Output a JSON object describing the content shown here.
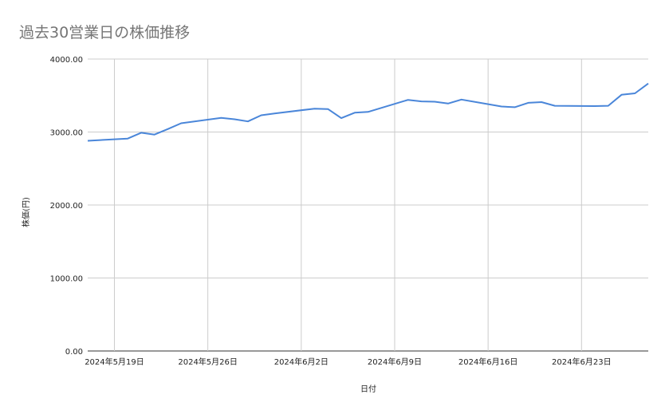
{
  "chart_data": {
    "type": "line",
    "title": "過去30営業日の株価推移",
    "xlabel": "日付",
    "ylabel": "株価(円)",
    "ylim": [
      0,
      4000
    ],
    "yticks": [
      "0.00",
      "1000.00",
      "2000.00",
      "3000.00",
      "4000.00"
    ],
    "xticks": [
      {
        "label": "2024年5月19日",
        "date": "2024-05-19"
      },
      {
        "label": "2024年5月26日",
        "date": "2024-05-26"
      },
      {
        "label": "2024年6月2日",
        "date": "2024-06-02"
      },
      {
        "label": "2024年6月9日",
        "date": "2024-06-09"
      },
      {
        "label": "2024年6月16日",
        "date": "2024-06-16"
      },
      {
        "label": "2024年6月23日",
        "date": "2024-06-23"
      }
    ],
    "xlim": [
      "2024-05-17",
      "2024-06-28"
    ],
    "grid": true,
    "line_color": "#4a86d9",
    "x": [
      "2024-05-17",
      "2024-05-20",
      "2024-05-21",
      "2024-05-22",
      "2024-05-23",
      "2024-05-24",
      "2024-05-27",
      "2024-05-28",
      "2024-05-29",
      "2024-05-30",
      "2024-05-31",
      "2024-06-03",
      "2024-06-04",
      "2024-06-05",
      "2024-06-06",
      "2024-06-07",
      "2024-06-10",
      "2024-06-11",
      "2024-06-12",
      "2024-06-13",
      "2024-06-14",
      "2024-06-17",
      "2024-06-18",
      "2024-06-19",
      "2024-06-20",
      "2024-06-21",
      "2024-06-24",
      "2024-06-25",
      "2024-06-26",
      "2024-06-27",
      "2024-06-28"
    ],
    "values": [
      2880,
      2910,
      2990,
      2965,
      3040,
      3120,
      3195,
      3175,
      3145,
      3230,
      3255,
      3320,
      3315,
      3190,
      3265,
      3275,
      3440,
      3420,
      3415,
      3390,
      3445,
      3350,
      3340,
      3400,
      3410,
      3360,
      3355,
      3360,
      3510,
      3530,
      3665
    ]
  }
}
